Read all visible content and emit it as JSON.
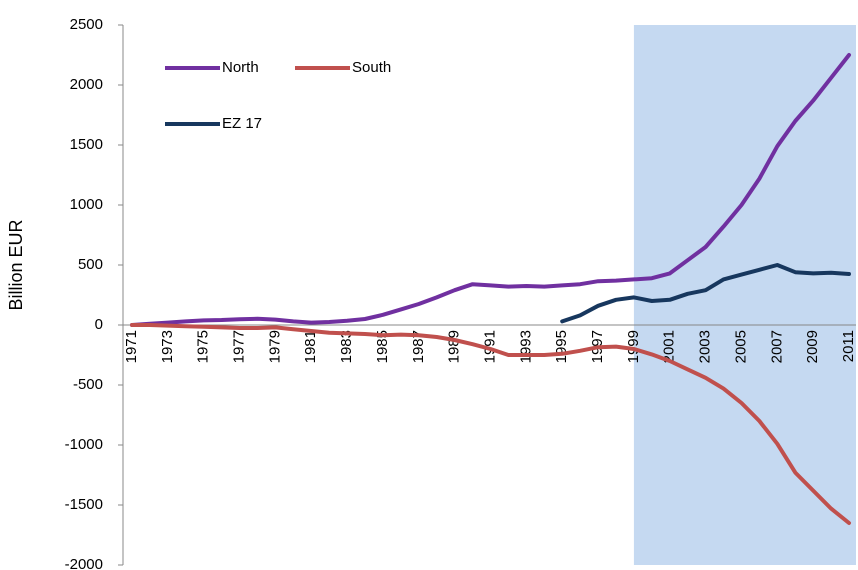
{
  "chart_data": {
    "type": "line",
    "y_label": "Billion EUR",
    "categories": [
      "1971",
      null,
      "1973",
      null,
      "1975",
      null,
      "1977",
      null,
      "1979",
      null,
      "1981",
      null,
      "1983",
      null,
      "1985",
      null,
      "1987",
      null,
      "1989",
      null,
      "1991",
      null,
      "1993",
      null,
      "1995",
      null,
      "1997",
      null,
      "1999",
      null,
      "2001",
      null,
      "2003",
      null,
      "2005",
      null,
      "2007",
      null,
      "2009",
      null,
      "2011"
    ],
    "highlight_from": "1999",
    "highlight_color": "#c5d9f1",
    "series": [
      {
        "name": "North",
        "color": "#7030a0",
        "values": [
          0,
          10,
          20,
          30,
          38,
          42,
          48,
          52,
          45,
          30,
          20,
          25,
          35,
          50,
          85,
          130,
          175,
          230,
          290,
          340,
          330,
          320,
          325,
          320,
          330,
          340,
          365,
          370,
          380,
          390,
          430,
          540,
          650,
          820,
          1000,
          1220,
          1490,
          1700,
          1870,
          2060,
          2250
        ]
      },
      {
        "name": "South",
        "color": "#c0504d",
        "values": [
          0,
          0,
          -5,
          -10,
          -15,
          -20,
          -25,
          -25,
          -20,
          -35,
          -50,
          -65,
          -70,
          -75,
          -85,
          -80,
          -85,
          -100,
          -125,
          -160,
          -200,
          -250,
          -250,
          -250,
          -240,
          -215,
          -185,
          -180,
          -200,
          -245,
          -300,
          -370,
          -440,
          -530,
          -650,
          -800,
          -990,
          -1230,
          -1380,
          -1530,
          -1650
        ]
      },
      {
        "name": "EZ 17",
        "color": "#17375e",
        "values": [
          null,
          null,
          null,
          null,
          null,
          null,
          null,
          null,
          null,
          null,
          null,
          null,
          null,
          null,
          null,
          null,
          null,
          null,
          null,
          null,
          null,
          null,
          null,
          null,
          30,
          80,
          160,
          210,
          230,
          200,
          210,
          260,
          290,
          380,
          420,
          460,
          500,
          440,
          430,
          435,
          425
        ]
      }
    ],
    "ylim": [
      -2000,
      2500
    ],
    "yticks": [
      -2000,
      -1500,
      -1000,
      -500,
      0,
      500,
      1000,
      1500,
      2000,
      2500
    ]
  }
}
